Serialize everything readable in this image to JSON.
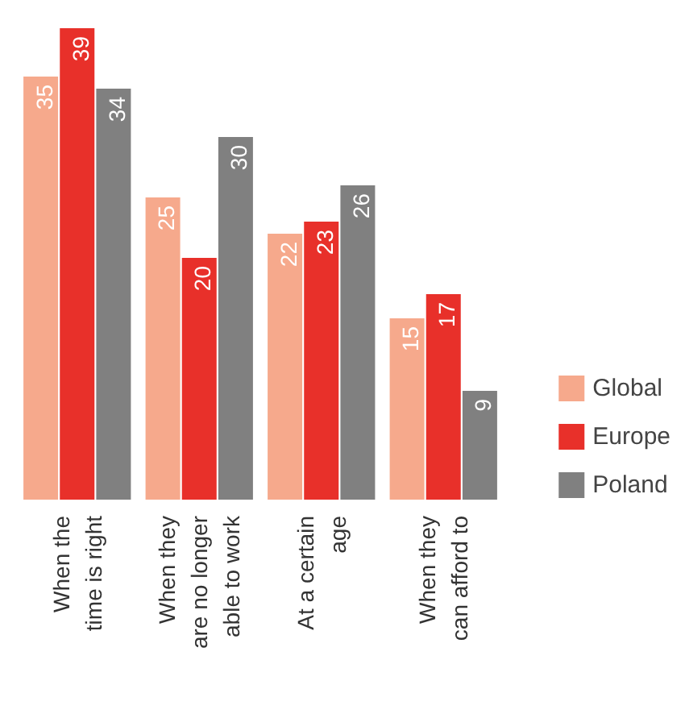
{
  "chart_data": {
    "type": "bar",
    "categories": [
      "When the\ntime is right",
      "When they\nare no longer\nable to work",
      "At a certain\nage",
      "When they\ncan afford to"
    ],
    "series": [
      {
        "name": "Global",
        "color": "#f6a98c",
        "values": [
          35,
          25,
          22,
          15
        ]
      },
      {
        "name": "Europe",
        "color": "#e8302a",
        "values": [
          39,
          20,
          23,
          17
        ]
      },
      {
        "name": "Poland",
        "color": "#808080",
        "values": [
          34,
          30,
          26,
          9
        ]
      }
    ],
    "data_labels": true,
    "legend": "right"
  }
}
